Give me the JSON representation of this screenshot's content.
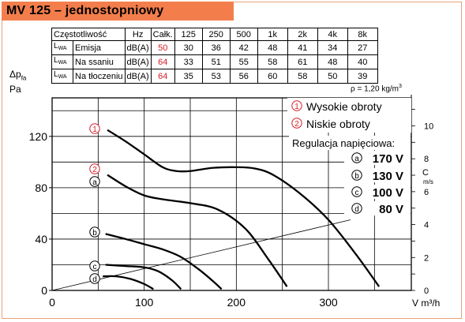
{
  "header": {
    "title": "MV 125 – jednostopniowy"
  },
  "table": {
    "header": [
      "Częstotliwość",
      "Hz",
      "Całk.",
      "125",
      "250",
      "500",
      "1k",
      "2k",
      "4k",
      "8k"
    ],
    "lwa_main": "L",
    "lwa_sub": "WA",
    "rows": [
      {
        "label": "Emisja",
        "unit": "dB(A)",
        "total": "50",
        "values": [
          "30",
          "36",
          "42",
          "48",
          "41",
          "34",
          "27"
        ]
      },
      {
        "label": "Na ssaniu",
        "unit": "dB(A)",
        "total": "64",
        "values": [
          "33",
          "51",
          "55",
          "58",
          "61",
          "48",
          "40"
        ]
      },
      {
        "label": "Na tłoczeniu",
        "unit": "dB(A)",
        "total": "64",
        "values": [
          "35",
          "53",
          "56",
          "60",
          "58",
          "50",
          "39"
        ]
      }
    ],
    "total_color": "#d9202a",
    "density": "ρ = 1,20 kg/m",
    "density_exp": "3"
  },
  "chart_data": {
    "type": "line",
    "ylabel_main": "Δp",
    "ylabel_sub": "fa",
    "ylabel_unit": "Pa",
    "xlabel": "V m³/h",
    "xlim": [
      0,
      390
    ],
    "ylim": [
      0,
      150
    ],
    "x_ticks": [
      0,
      100,
      200,
      300
    ],
    "x_tick_labels": [
      "0",
      "100",
      "200",
      "300"
    ],
    "y_ticks": [
      0,
      40,
      80,
      120
    ],
    "y_tick_labels": [
      "0",
      "40",
      "80",
      "120"
    ],
    "grid": true,
    "right_axis": {
      "label_main": "C",
      "label_unit": "m/s",
      "range": [
        0,
        11.7
      ],
      "ticks": [
        0,
        2,
        4,
        6,
        8,
        10
      ],
      "tick_labels": [
        "0",
        "2",
        "4",
        "6",
        "8",
        "10"
      ]
    },
    "legend": {
      "speed_high": {
        "symbol": "1",
        "text": "Wysokie  obroty"
      },
      "speed_low": {
        "symbol": "2",
        "text": "Niskie  obroty"
      },
      "regulation_title": "Regulacja  napięciowa:",
      "voltages": [
        {
          "symbol": "a",
          "text": "170 V"
        },
        {
          "symbol": "b",
          "text": "130 V"
        },
        {
          "symbol": "c",
          "text": "100 V"
        },
        {
          "symbol": "d",
          "text": "80 V"
        }
      ]
    },
    "curve_color": "#000000",
    "speed_marker_color": "#d9202a",
    "series": [
      {
        "label": "1",
        "kind": "speed",
        "points": [
          [
            60,
            125
          ],
          [
            80,
            116
          ],
          [
            100,
            106
          ],
          [
            120,
            96
          ],
          [
            135,
            93
          ],
          [
            150,
            93
          ],
          [
            175,
            95.5
          ],
          [
            200,
            96
          ],
          [
            220,
            95
          ],
          [
            240,
            90
          ],
          [
            270,
            75
          ],
          [
            300,
            55
          ],
          [
            330,
            28
          ],
          [
            355,
            3
          ]
        ]
      },
      {
        "label": "2",
        "kind": "speed",
        "points": [
          [
            60,
            90
          ],
          [
            80,
            81
          ],
          [
            100,
            74
          ],
          [
            120,
            71
          ],
          [
            150,
            68
          ],
          [
            180,
            63
          ],
          [
            210,
            48
          ],
          [
            235,
            24
          ],
          [
            255,
            3
          ]
        ]
      },
      {
        "label": "a",
        "kind": "voltage",
        "points": [
          [
            60,
            90
          ],
          [
            80,
            81
          ],
          [
            100,
            74
          ],
          [
            120,
            71
          ],
          [
            150,
            68
          ],
          [
            180,
            63
          ],
          [
            210,
            48
          ],
          [
            235,
            24
          ],
          [
            255,
            3
          ]
        ]
      },
      {
        "label": "b",
        "kind": "voltage",
        "points": [
          [
            58,
            44
          ],
          [
            80,
            40
          ],
          [
            100,
            36
          ],
          [
            120,
            32
          ],
          [
            140,
            26
          ],
          [
            160,
            16
          ],
          [
            175,
            7
          ],
          [
            184,
            1
          ]
        ]
      },
      {
        "label": "c",
        "kind": "voltage",
        "points": [
          [
            58,
            20
          ],
          [
            80,
            19
          ],
          [
            100,
            18
          ],
          [
            115,
            15
          ],
          [
            130,
            8
          ],
          [
            140,
            1
          ]
        ]
      },
      {
        "label": "d",
        "kind": "voltage",
        "points": [
          [
            55,
            11
          ],
          [
            70,
            11
          ],
          [
            85,
            9
          ],
          [
            100,
            5
          ],
          [
            110,
            1
          ]
        ]
      }
    ],
    "velocity_line": {
      "points": [
        [
          0,
          0
        ],
        [
          324,
          55
        ]
      ]
    }
  }
}
